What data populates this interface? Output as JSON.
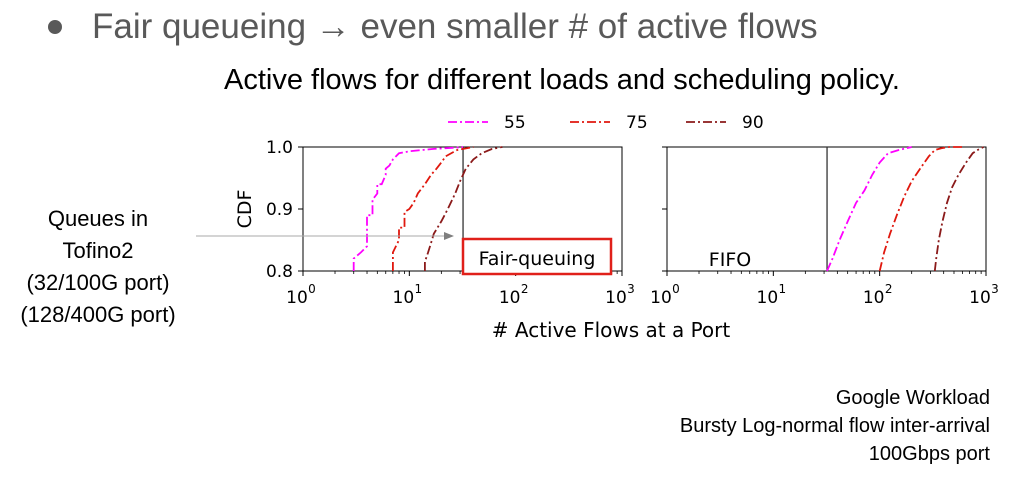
{
  "slide": {
    "bullet": "Fair queueing → even smaller # of active flows",
    "subtitle": "Active flows for different loads and scheduling policy.",
    "queues_label": [
      "Queues in",
      "Tofino2",
      "(32/100G port)",
      "(128/400G port)"
    ],
    "notes": [
      "Google Workload",
      "Bursty Log-normal flow inter-arrival",
      "100Gbps port"
    ]
  },
  "colors": {
    "series_55": "#ff00ff",
    "series_75": "#e0180e",
    "series_90": "#8b1a1a",
    "highlight_box": "#e0201a",
    "bullet_text": "#595959"
  },
  "chart_data": [
    {
      "type": "line",
      "panel": "left",
      "annotation": "Fair-queuing",
      "annotation_boxed": true,
      "xlabel": "# Active Flows at a Port",
      "ylabel": "CDF",
      "xscale": "log",
      "xlim": [
        1,
        1000
      ],
      "ylim": [
        0.8,
        1.0
      ],
      "x_tick_labels": [
        "10",
        "10",
        "10",
        "10"
      ],
      "x_tick_exponents": [
        "0",
        "1",
        "2",
        "3"
      ],
      "x_tick_values": [
        1,
        10,
        100,
        1000
      ],
      "y_tick_labels": [
        "1.0",
        "0.9",
        "0.8"
      ],
      "y_tick_values": [
        1.0,
        0.9,
        0.8
      ],
      "vertical_line_x": 32,
      "legend": {
        "placement": "top",
        "entries": [
          "55",
          "75",
          "90"
        ]
      },
      "series": [
        {
          "name": "55",
          "linestyle": "dash-dot",
          "x": [
            3,
            3,
            3.5,
            4,
            4,
            4.5,
            4.5,
            5,
            5,
            5.5,
            6,
            6,
            6.5,
            7,
            8,
            10,
            13,
            17,
            22,
            28,
            32
          ],
          "y": [
            0.8,
            0.82,
            0.83,
            0.84,
            0.89,
            0.89,
            0.915,
            0.925,
            0.94,
            0.94,
            0.955,
            0.965,
            0.97,
            0.98,
            0.99,
            0.993,
            0.995,
            0.997,
            0.998,
            0.999,
            1.0
          ]
        },
        {
          "name": "75",
          "linestyle": "dash-dot",
          "x": [
            7,
            7,
            8,
            8,
            9,
            9,
            10,
            11,
            12,
            14,
            16,
            18,
            20,
            22,
            28,
            40
          ],
          "y": [
            0.8,
            0.83,
            0.85,
            0.87,
            0.87,
            0.895,
            0.9,
            0.91,
            0.925,
            0.94,
            0.955,
            0.965,
            0.975,
            0.985,
            0.995,
            1.0
          ]
        },
        {
          "name": "90",
          "linestyle": "dash-dot",
          "x": [
            14,
            14,
            15,
            16,
            17,
            20,
            23,
            27,
            30,
            34,
            40,
            48,
            60,
            75
          ],
          "y": [
            0.8,
            0.815,
            0.83,
            0.845,
            0.86,
            0.88,
            0.9,
            0.925,
            0.945,
            0.965,
            0.98,
            0.99,
            0.997,
            1.0
          ]
        }
      ]
    },
    {
      "type": "line",
      "panel": "right",
      "annotation": "FIFO",
      "annotation_boxed": false,
      "xscale": "log",
      "xlim": [
        1,
        1000
      ],
      "ylim": [
        0.8,
        1.0
      ],
      "x_tick_labels": [
        "10",
        "10",
        "10",
        "10"
      ],
      "x_tick_exponents": [
        "0",
        "1",
        "2",
        "3"
      ],
      "x_tick_values": [
        1,
        10,
        100,
        1000
      ],
      "vertical_line_x": 32,
      "series": [
        {
          "name": "55",
          "linestyle": "dash-dot",
          "x": [
            32,
            36,
            42,
            50,
            60,
            72,
            85,
            100,
            120,
            150,
            200
          ],
          "y": [
            0.8,
            0.82,
            0.85,
            0.88,
            0.91,
            0.93,
            0.955,
            0.975,
            0.99,
            0.995,
            1.0
          ]
        },
        {
          "name": "75",
          "linestyle": "dash-dot",
          "x": [
            100,
            110,
            125,
            145,
            170,
            200,
            240,
            290,
            330,
            380,
            450,
            600
          ],
          "y": [
            0.8,
            0.83,
            0.86,
            0.89,
            0.92,
            0.945,
            0.965,
            0.985,
            0.995,
            0.998,
            1.0,
            1.0
          ]
        },
        {
          "name": "90",
          "linestyle": "dash-dot",
          "x": [
            330,
            340,
            360,
            390,
            430,
            480,
            550,
            650,
            750,
            850,
            950
          ],
          "y": [
            0.8,
            0.82,
            0.85,
            0.88,
            0.91,
            0.935,
            0.955,
            0.975,
            0.99,
            0.996,
            1.0
          ]
        }
      ]
    }
  ]
}
